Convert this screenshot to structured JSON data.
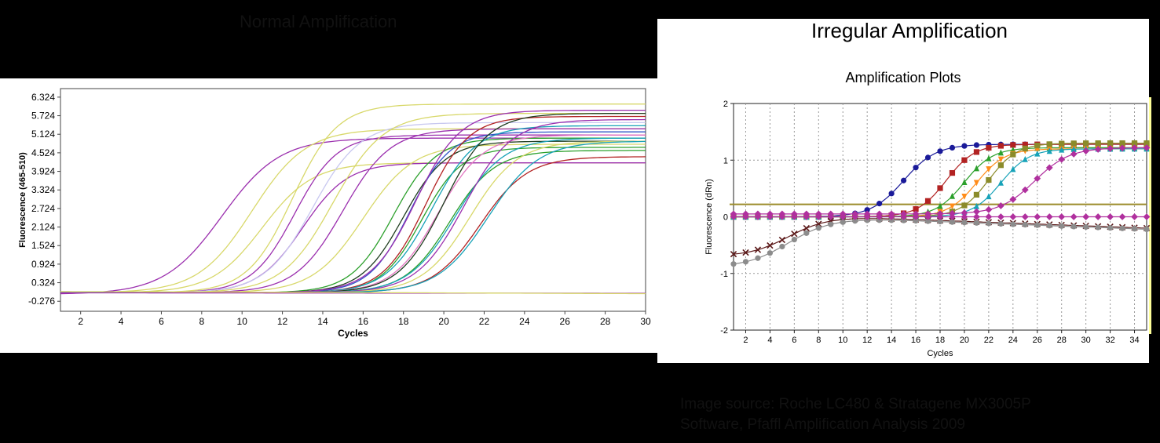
{
  "header": {
    "left_title": "Normal Amplification",
    "right_title": "Irregular Amplification"
  },
  "caption": {
    "line1": "Image source: Roche LC480 & Stratagene MX3005P",
    "line2": "Software, Pfaffl Amplification Analysis 2009"
  },
  "chart_data": [
    {
      "type": "line",
      "title": "",
      "xlabel": "Cycles",
      "ylabel": "Fluorescence (465-510)",
      "xlim": [
        1,
        30
      ],
      "ylim": [
        -0.6,
        6.6
      ],
      "xticks": [
        2,
        4,
        6,
        8,
        10,
        12,
        14,
        16,
        18,
        20,
        22,
        24,
        26,
        28,
        30
      ],
      "yticks": [
        -0.276,
        0.324,
        0.924,
        1.524,
        2.124,
        2.724,
        3.324,
        3.924,
        4.524,
        5.124,
        5.724,
        6.324
      ],
      "grid": false,
      "series": [
        {
          "color": "#9b2fae",
          "values": {
            "base": -0.05,
            "plateau": 5.0,
            "midpoint": 9.0,
            "slope": 0.7
          }
        },
        {
          "color": "#d8d86a",
          "values": {
            "base": 0.0,
            "plateau": 5.3,
            "midpoint": 10.5,
            "slope": 0.75
          }
        },
        {
          "color": "#d8d86a",
          "values": {
            "base": 0.0,
            "plateau": 4.2,
            "midpoint": 11.0,
            "slope": 0.8
          }
        },
        {
          "color": "#d8d86a",
          "values": {
            "base": 0.0,
            "plateau": 6.1,
            "midpoint": 12.5,
            "slope": 0.9
          }
        },
        {
          "color": "#9b2fae",
          "values": {
            "base": 0.0,
            "plateau": 5.1,
            "midpoint": 12.6,
            "slope": 0.95
          }
        },
        {
          "color": "#9b2fae",
          "values": {
            "base": 0.0,
            "plateau": 4.2,
            "midpoint": 13.0,
            "slope": 0.9
          }
        },
        {
          "color": "#c8c8f0",
          "values": {
            "base": 0.0,
            "plateau": 5.5,
            "midpoint": 13.5,
            "slope": 0.85
          }
        },
        {
          "color": "#d8d86a",
          "values": {
            "base": 0.0,
            "plateau": 5.8,
            "midpoint": 14.5,
            "slope": 0.8
          }
        },
        {
          "color": "#9b2fae",
          "values": {
            "base": 0.0,
            "plateau": 5.3,
            "midpoint": 15.0,
            "slope": 0.85
          }
        },
        {
          "color": "#d8d86a",
          "values": {
            "base": 0.0,
            "plateau": 4.8,
            "midpoint": 16.0,
            "slope": 0.8
          }
        },
        {
          "color": "#2ca02c",
          "values": {
            "base": 0.0,
            "plateau": 5.0,
            "midpoint": 17.5,
            "slope": 0.95
          }
        },
        {
          "color": "#1f3d1f",
          "values": {
            "base": 0.0,
            "plateau": 4.9,
            "midpoint": 18.0,
            "slope": 0.95
          }
        },
        {
          "color": "#2f55c8",
          "values": {
            "base": 0.0,
            "plateau": 5.2,
            "midpoint": 18.3,
            "slope": 1.0
          }
        },
        {
          "color": "#9b2fae",
          "values": {
            "base": 0.0,
            "plateau": 5.9,
            "midpoint": 18.6,
            "slope": 0.9
          }
        },
        {
          "color": "#2ca02c",
          "values": {
            "base": 0.0,
            "plateau": 4.7,
            "midpoint": 18.9,
            "slope": 1.0
          }
        },
        {
          "color": "#b22222",
          "values": {
            "base": 0.0,
            "plateau": 5.7,
            "midpoint": 19.1,
            "slope": 0.95
          }
        },
        {
          "color": "#17a2b8",
          "values": {
            "base": 0.0,
            "plateau": 5.4,
            "midpoint": 19.4,
            "slope": 0.9
          }
        },
        {
          "color": "#e377c2",
          "values": {
            "base": 0.0,
            "plateau": 5.1,
            "midpoint": 19.7,
            "slope": 0.9
          }
        },
        {
          "color": "#1f3d1f",
          "values": {
            "base": 0.0,
            "plateau": 5.8,
            "midpoint": 20.0,
            "slope": 0.9
          }
        },
        {
          "color": "#2ca02c",
          "values": {
            "base": 0.0,
            "plateau": 4.6,
            "midpoint": 20.3,
            "slope": 0.9
          }
        },
        {
          "color": "#17a2b8",
          "values": {
            "base": 0.0,
            "plateau": 5.0,
            "midpoint": 20.6,
            "slope": 0.85
          }
        },
        {
          "color": "#9b2fae",
          "values": {
            "base": 0.0,
            "plateau": 5.6,
            "midpoint": 21.0,
            "slope": 0.85
          }
        },
        {
          "color": "#d8d86a",
          "values": {
            "base": 0.0,
            "plateau": 4.9,
            "midpoint": 21.3,
            "slope": 0.85
          }
        },
        {
          "color": "#b22222",
          "values": {
            "base": 0.0,
            "plateau": 4.4,
            "midpoint": 21.8,
            "slope": 0.85
          }
        },
        {
          "color": "#17a2b8",
          "values": {
            "base": 0.0,
            "plateau": 4.9,
            "midpoint": 22.2,
            "slope": 0.8
          }
        },
        {
          "color": "#9b2fae",
          "values": {
            "base": 0.0,
            "plateau": -0.02,
            "midpoint": 15.0,
            "slope": 0.1
          }
        },
        {
          "color": "#d8d86a",
          "values": {
            "base": 0.05,
            "plateau": -0.06,
            "midpoint": 20.0,
            "slope": 0.1
          }
        }
      ]
    },
    {
      "type": "line",
      "title": "Amplification Plots",
      "xlabel": "Cycles",
      "ylabel": "Fluorescence (dRn)",
      "xlim": [
        1,
        35
      ],
      "ylim": [
        -2,
        2
      ],
      "xticks": [
        2,
        4,
        6,
        8,
        10,
        12,
        14,
        16,
        18,
        20,
        22,
        24,
        26,
        28,
        30,
        32,
        34
      ],
      "yticks": [
        -2,
        -1,
        0,
        1,
        2
      ],
      "grid": true,
      "threshold": 0.22,
      "series": [
        {
          "color": "#1a1a99",
          "marker": "circle",
          "values": {
            "start": 0.0,
            "plateau": 1.28,
            "midpoint": 15.0,
            "slope": 0.75
          }
        },
        {
          "color": "#b22222",
          "marker": "square",
          "values": {
            "start": 0.0,
            "plateau": 1.28,
            "midpoint": 18.5,
            "slope": 0.85
          }
        },
        {
          "color": "#2ca02c",
          "marker": "triangle",
          "values": {
            "start": 0.0,
            "plateau": 1.22,
            "midpoint": 20.0,
            "slope": 0.85
          }
        },
        {
          "color": "#ff8c1a",
          "marker": "triangle-down",
          "values": {
            "start": 0.0,
            "plateau": 1.2,
            "midpoint": 21.0,
            "slope": 0.85
          }
        },
        {
          "color": "#8b8b2a",
          "marker": "square",
          "values": {
            "start": 0.0,
            "plateau": 1.3,
            "midpoint": 22.0,
            "slope": 0.85
          }
        },
        {
          "color": "#17a2b8",
          "marker": "triangle",
          "values": {
            "start": 0.0,
            "plateau": 1.2,
            "midpoint": 23.0,
            "slope": 0.85
          }
        },
        {
          "color": "#b0309e",
          "marker": "diamond",
          "values": {
            "start": 0.05,
            "plateau": 1.22,
            "midpoint": 25.8,
            "slope": 0.7
          }
        },
        {
          "color": "#5c1a1a",
          "marker": "x",
          "values": {
            "start": -0.7,
            "plateau": 0.08,
            "midpoint": 5.5,
            "slope": 0.6,
            "drift": -0.008
          }
        },
        {
          "color": "#8c8c8c",
          "marker": "circle",
          "values": {
            "start": -0.9,
            "plateau": 0.06,
            "midpoint": 5.5,
            "slope": 0.55,
            "drift": -0.008
          }
        },
        {
          "color": "#b0309e",
          "marker": "diamond",
          "values": {
            "start": 0.0,
            "plateau": 0.0,
            "midpoint": 10.0,
            "slope": 1.0
          }
        }
      ]
    }
  ],
  "colors": {
    "background": "#000000",
    "panel": "#ffffff",
    "threshold_line": "#9b8b2a",
    "right_edge_stripe": "#ffff99"
  }
}
